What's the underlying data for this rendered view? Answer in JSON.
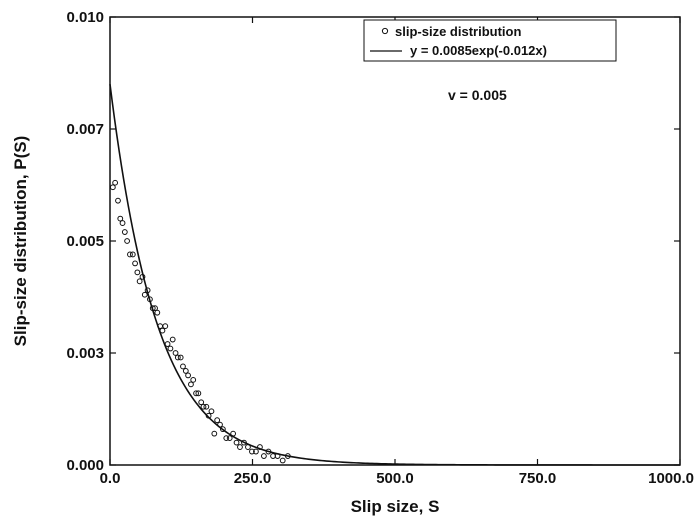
{
  "chart_data": {
    "type": "scatter",
    "xlabel": "Slip size, S",
    "ylabel": "Slip-size distribution, P(S)",
    "xlim": [
      0,
      1000
    ],
    "ylim": [
      0,
      0.01
    ],
    "x_ticks": [
      0,
      250,
      500,
      750,
      1000
    ],
    "x_tick_labels": [
      "0.0",
      "250.0",
      "500.0",
      "750.0",
      "1000.0"
    ],
    "y_ticks": [
      0,
      0.0025,
      0.005,
      0.0075,
      0.01
    ],
    "y_tick_labels": [
      "0.000",
      "0.003",
      "0.005",
      "0.007",
      "0.010"
    ],
    "grid": false,
    "legend_position": "top-right",
    "annotation": "v = 0.005",
    "series": [
      {
        "name": "slip-size distribution",
        "kind": "scatter",
        "marker": "open-circle",
        "x": [
          5,
          9,
          14,
          18,
          22,
          26,
          30,
          35,
          40,
          44,
          48,
          52,
          57,
          61,
          66,
          70,
          75,
          79,
          83,
          88,
          92,
          97,
          101,
          106,
          110,
          115,
          119,
          124,
          128,
          133,
          137,
          142,
          146,
          151,
          155,
          160,
          164,
          169,
          173,
          178,
          183,
          188,
          193,
          198,
          204,
          210,
          216,
          222,
          228,
          235,
          242,
          249,
          256,
          263,
          270,
          278,
          286,
          294,
          303,
          312
        ],
        "y": [
          0.0062,
          0.0063,
          0.0059,
          0.0055,
          0.0054,
          0.0052,
          0.005,
          0.0047,
          0.0047,
          0.0045,
          0.0043,
          0.0041,
          0.0042,
          0.0038,
          0.0039,
          0.0037,
          0.0035,
          0.0035,
          0.0034,
          0.0031,
          0.003,
          0.0031,
          0.0027,
          0.0026,
          0.0028,
          0.0025,
          0.0024,
          0.0024,
          0.0022,
          0.0021,
          0.002,
          0.0018,
          0.0019,
          0.0016,
          0.0016,
          0.0014,
          0.0013,
          0.0013,
          0.0011,
          0.0012,
          0.0007,
          0.001,
          0.0009,
          0.0008,
          0.0006,
          0.0006,
          0.0007,
          0.0005,
          0.0004,
          0.0005,
          0.0004,
          0.0003,
          0.0003,
          0.0004,
          0.0002,
          0.0003,
          0.0002,
          0.0002,
          0.0001,
          0.0002
        ]
      },
      {
        "name": "y = 0.0085exp(-0.012x)",
        "kind": "line",
        "a": 0.0085,
        "b": -0.012
      }
    ]
  }
}
